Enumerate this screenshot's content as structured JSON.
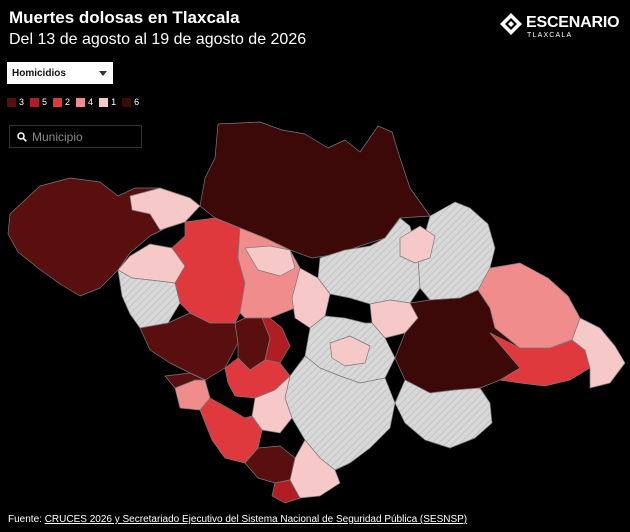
{
  "header": {
    "title": "Muertes dolosas en Tlaxcala",
    "subtitle": "Del 13 de agosto al 19 de agosto de 2026"
  },
  "logo": {
    "name": "ESCENARIO",
    "sub": "TLAXCALA"
  },
  "filter": {
    "selected": "Homicidios"
  },
  "legend": [
    {
      "label": "3",
      "color": "#5a0f0f"
    },
    {
      "label": "5",
      "color": "#b01e24"
    },
    {
      "label": "2",
      "color": "#e0393d"
    },
    {
      "label": "4",
      "color": "#f08c8c"
    },
    {
      "label": "1",
      "color": "#f6c8c8"
    },
    {
      "label": "6",
      "color": "#3d0808"
    }
  ],
  "search": {
    "placeholder": "Municipio"
  },
  "map": {
    "nodata_color": "#d8d8d8",
    "border_color": "#7a7a7a"
  },
  "footer": {
    "prefix": "Fuente: ",
    "link": "CRUCES 2026 y Secretariado Ejecutivo del Sistema Nacional de Seguridad Pública (SESNSP)"
  }
}
